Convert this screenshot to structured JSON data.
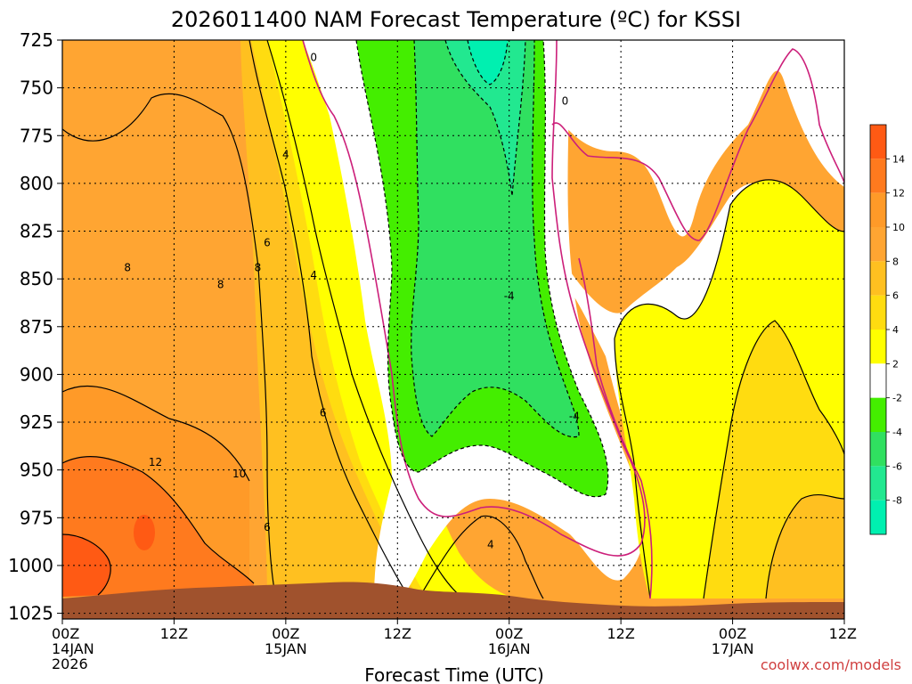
{
  "chart_data": {
    "type": "heatmap",
    "title": "2026011400 NAM Forecast Temperature (ºC) for KSSI",
    "xlabel": "Forecast Time (UTC)",
    "ylabel": "",
    "credit": "coolwx.com/models",
    "y_ticks": [
      "725",
      "750",
      "775",
      "800",
      "825",
      "850",
      "875",
      "900",
      "925",
      "950",
      "975",
      "1000",
      "1025"
    ],
    "y_range": [
      725,
      1028
    ],
    "x_ticks": [
      {
        "hour": 0,
        "lines": [
          "00Z",
          "14JAN",
          "2026"
        ]
      },
      {
        "hour": 12,
        "lines": [
          "12Z"
        ]
      },
      {
        "hour": 24,
        "lines": [
          "00Z",
          "15JAN"
        ]
      },
      {
        "hour": 36,
        "lines": [
          "12Z"
        ]
      },
      {
        "hour": 48,
        "lines": [
          "00Z",
          "16JAN"
        ]
      },
      {
        "hour": 60,
        "lines": [
          "12Z"
        ]
      },
      {
        "hour": 72,
        "lines": [
          "00Z",
          "17JAN"
        ]
      },
      {
        "hour": 84,
        "lines": [
          "12Z"
        ]
      }
    ],
    "x_range": [
      0,
      84
    ],
    "grid": true,
    "colorbar": {
      "labels": [
        "14",
        "12",
        "10",
        "8",
        "6",
        "4",
        "2",
        "-2",
        "-4",
        "-6",
        "-8"
      ],
      "bins": [
        {
          "min": 14,
          "max": 16,
          "color": "#ff5a14"
        },
        {
          "min": 12,
          "max": 14,
          "color": "#ff7a1e"
        },
        {
          "min": 10,
          "max": 12,
          "color": "#ff9a28"
        },
        {
          "min": 8,
          "max": 10,
          "color": "#ffa532"
        },
        {
          "min": 6,
          "max": 8,
          "color": "#ffc020"
        },
        {
          "min": 4,
          "max": 6,
          "color": "#ffdc10"
        },
        {
          "min": 2,
          "max": 4,
          "color": "#ffff00"
        },
        {
          "min": -2,
          "max": 2,
          "color": "#ffffff"
        },
        {
          "min": -4,
          "max": -2,
          "color": "#44ee00"
        },
        {
          "min": -6,
          "max": -4,
          "color": "#30e060"
        },
        {
          "min": -8,
          "max": -6,
          "color": "#22e890"
        },
        {
          "min": -10,
          "max": -8,
          "color": "#00f0b0"
        }
      ]
    },
    "contour_labels": [
      {
        "text": "0",
        "hour": 27,
        "p": 734
      },
      {
        "text": "0",
        "hour": 54,
        "p": 757
      },
      {
        "text": "4",
        "hour": 24,
        "p": 785
      },
      {
        "text": "6",
        "hour": 22,
        "p": 831
      },
      {
        "text": "8",
        "hour": 7,
        "p": 844
      },
      {
        "text": "8",
        "hour": 21,
        "p": 844
      },
      {
        "text": "8",
        "hour": 17,
        "p": 853
      },
      {
        "text": "4",
        "hour": 27,
        "p": 848
      },
      {
        "text": "-4",
        "hour": 48,
        "p": 859
      },
      {
        "text": "-4",
        "hour": 55,
        "p": 922
      },
      {
        "text": "6",
        "hour": 28,
        "p": 920
      },
      {
        "text": "12",
        "hour": 10,
        "p": 946
      },
      {
        "text": "10",
        "hour": 19,
        "p": 952
      },
      {
        "text": "6",
        "hour": 22,
        "p": 980
      },
      {
        "text": "4",
        "hour": 46,
        "p": 989
      }
    ]
  }
}
